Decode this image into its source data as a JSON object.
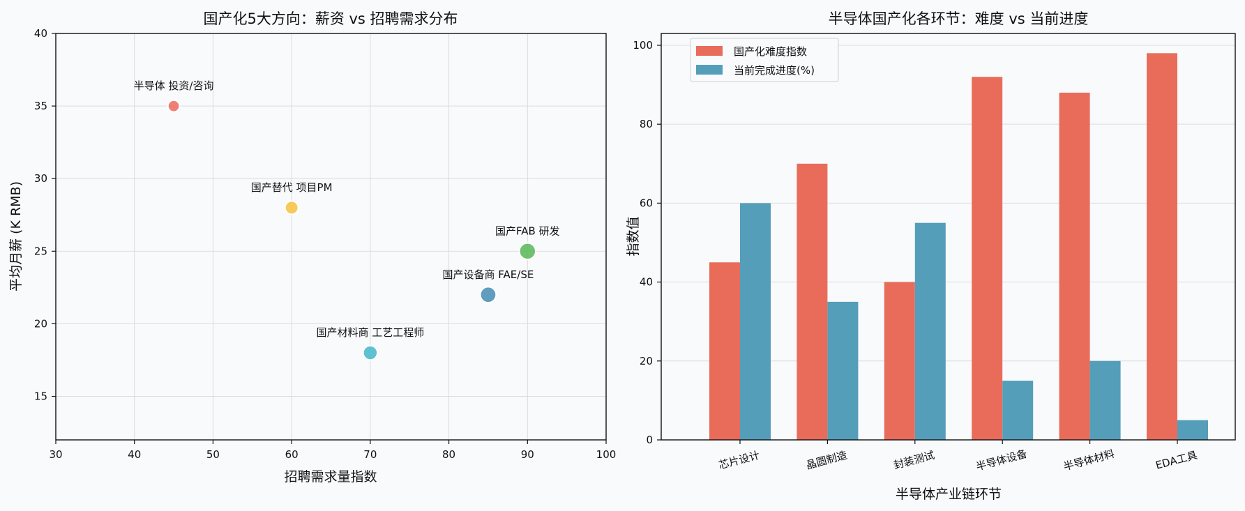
{
  "chart_data": [
    {
      "type": "scatter",
      "title": "国产化5大方向：薪资 vs 招聘需求分布",
      "xlabel": "招聘需求量指数",
      "ylabel": "平均月薪 (K RMB)",
      "xlim": [
        30,
        100
      ],
      "ylim": [
        12,
        40
      ],
      "xticks": [
        30,
        40,
        50,
        60,
        70,
        80,
        90,
        100
      ],
      "yticks": [
        15,
        20,
        25,
        30,
        35,
        40
      ],
      "grid": true,
      "points": [
        {
          "label": "半导体 投资/咨询",
          "x": 45,
          "y": 35,
          "color": "#ec7063"
        },
        {
          "label": "国产替代 项目PM",
          "x": 60,
          "y": 28,
          "color": "#f6c343"
        },
        {
          "label": "国产FAB 研发",
          "x": 90,
          "y": 25,
          "color": "#5cb85c"
        },
        {
          "label": "国产设备商 FAE/SE",
          "x": 85,
          "y": 22,
          "color": "#4b90b5"
        },
        {
          "label": "国产材料商 工艺工程师",
          "x": 70,
          "y": 18,
          "color": "#4ab8cc"
        }
      ]
    },
    {
      "type": "bar",
      "title": "半导体国产化各环节：难度 vs 当前进度",
      "xlabel": "半导体产业链环节",
      "ylabel": "指数值",
      "ylim": [
        0,
        103
      ],
      "yticks": [
        0,
        20,
        40,
        60,
        80,
        100
      ],
      "grid": true,
      "legend_position": "top-left",
      "categories": [
        "芯片设计",
        "晶圆制造",
        "封装测试",
        "半导体设备",
        "半导体材料",
        "EDA工具"
      ],
      "series": [
        {
          "name": "国产化难度指数",
          "color": "#e96c5b",
          "values": [
            45,
            70,
            40,
            92,
            88,
            98
          ]
        },
        {
          "name": "当前完成进度(%)",
          "color": "#559eba",
          "values": [
            60,
            35,
            55,
            15,
            20,
            5
          ]
        }
      ]
    }
  ]
}
